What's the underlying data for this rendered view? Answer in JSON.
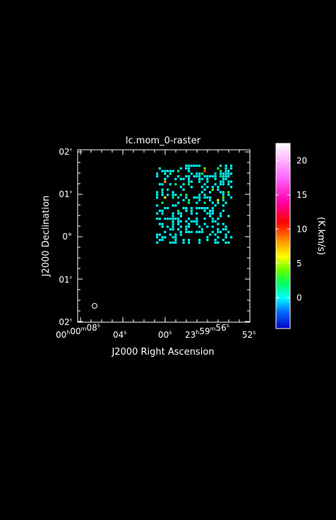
{
  "window": {
    "background": "#000000"
  },
  "plot": {
    "title": "lc.mom_0-raster",
    "xlabel": "J2000 Right Ascension",
    "ylabel": "J2000 Declination",
    "x_ticks": [
      {
        "main": "00",
        "parts": [
          {
            "t": "00",
            "sup": "h"
          },
          {
            "t": "00",
            "sup": "m"
          },
          {
            "t": "08",
            "sup": "s"
          }
        ]
      },
      {
        "main": "04",
        "parts": [
          {
            "t": "04",
            "sup": "s"
          }
        ]
      },
      {
        "main": "00",
        "parts": [
          {
            "t": "00",
            "sup": "s"
          }
        ]
      },
      {
        "main": "23",
        "parts": [
          {
            "t": "23",
            "sup": "h"
          },
          {
            "t": "59",
            "sup": "m"
          },
          {
            "t": "56",
            "sup": "s"
          }
        ]
      },
      {
        "main": "52",
        "parts": [
          {
            "t": "52",
            "sup": "s"
          }
        ]
      }
    ],
    "y_ticks": [
      "02'",
      "01'",
      "0°",
      "01'",
      "02'"
    ],
    "beam_marker": "ellipse"
  },
  "colorbar": {
    "label": "(K.km/s)",
    "ticks": [
      "20",
      "15",
      "10",
      "5",
      "0"
    ],
    "tick_values": [
      20,
      15,
      10,
      5,
      0
    ],
    "range": [
      -4.5,
      22.5
    ],
    "stops": [
      {
        "v": -4.5,
        "color": "#0000c8"
      },
      {
        "v": -2.0,
        "color": "#0070ff"
      },
      {
        "v": 0.0,
        "color": "#00ffff"
      },
      {
        "v": 2.0,
        "color": "#00ff66"
      },
      {
        "v": 4.0,
        "color": "#66ff00"
      },
      {
        "v": 6.0,
        "color": "#ffff00"
      },
      {
        "v": 8.5,
        "color": "#ff8800"
      },
      {
        "v": 11.0,
        "color": "#ff0000"
      },
      {
        "v": 14.0,
        "color": "#ff00aa"
      },
      {
        "v": 17.5,
        "color": "#ff66ff"
      },
      {
        "v": 22.5,
        "color": "#ffffff"
      }
    ]
  },
  "chart_data": {
    "type": "heatmap",
    "title": "lc.mom_0-raster",
    "xlabel": "J2000 Right Ascension",
    "ylabel": "J2000 Declination",
    "colorbar_label": "(K.km/s)",
    "value_range": [
      -4.5,
      22.5
    ],
    "cols": 30,
    "rows": 30,
    "grid": [
      "...........000000.......0.0.0",
      ".0.......0.00.....2....1..0.0",
      "..00000.1...0.....7.....1.00.",
      "0..0.1.......0.001....0.00000",
      "0...0...0..00.000.00000.1000.",
      "...0...0.00.0...00.0..0..00..",
      "...5........00..0..0....00.00",
      ".00..0.1..0.1.....0...0.00.0.",
      ".........0...0...0.0.0.0....0",
      "..0.0.....0.......0..2.0.....",
      "0.0...0..........0..0...00.2.",
      "0.0.0.00.1.1....0.0......0.0.",
      "0..3..1.0..0..000.000....2..0",
      "..........0.1...0...0..3.0...",
      "..1.....0...1..0..1..0.0..0..",
      "0.....00..............0..0...",
      "...00.....00.0.00000.0.......",
      ".00.....1..0.0....0.00...0...",
      "0.0...0.00...0.0...000..0....",
      "......0..0..........0...0..0.",
      "00.000000...0..0..0..0.0.....",
      "......0.00.0.000.....00......",
      ".00...0.0...0..0..0....0.0...",
      "..0.0.0..0.00...0..0.0....0..",
      ".....00.0..0.....0.....0.00..",
      "...0.....0.000.000...0.00..0.",
      "00...0.0.0..........0.0...0..",
      "0.00..00...........0...0..0.0",
      ".00....0..0.0...0..0..0..0...",
      "0....000..0.0...0.....00..00."
    ]
  }
}
